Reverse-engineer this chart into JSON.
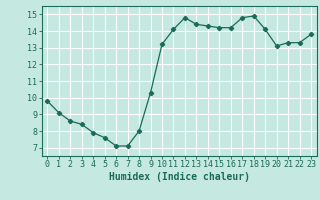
{
  "xlabel": "Humidex (Indice chaleur)",
  "ylabel": "",
  "x": [
    0,
    1,
    2,
    3,
    4,
    5,
    6,
    7,
    8,
    9,
    10,
    11,
    12,
    13,
    14,
    15,
    16,
    17,
    18,
    19,
    20,
    21,
    22,
    23
  ],
  "y": [
    9.8,
    9.1,
    8.6,
    8.4,
    7.9,
    7.6,
    7.1,
    7.1,
    8.0,
    10.3,
    13.2,
    14.1,
    14.8,
    14.4,
    14.3,
    14.2,
    14.2,
    14.8,
    14.9,
    14.1,
    13.1,
    13.3,
    13.3,
    13.8
  ],
  "line_color": "#1a6b5a",
  "marker": "D",
  "marker_size": 2.2,
  "background_color": "#c5e8e0",
  "grid_color": "#ffffff",
  "xlim": [
    -0.5,
    23.5
  ],
  "ylim": [
    6.5,
    15.5
  ],
  "yticks": [
    7,
    8,
    9,
    10,
    11,
    12,
    13,
    14,
    15
  ],
  "xticks": [
    0,
    1,
    2,
    3,
    4,
    5,
    6,
    7,
    8,
    9,
    10,
    11,
    12,
    13,
    14,
    15,
    16,
    17,
    18,
    19,
    20,
    21,
    22,
    23
  ],
  "tick_color": "#1a6b5a",
  "axis_color": "#1a6b5a",
  "xlabel_fontsize": 7,
  "tick_fontsize": 6.0,
  "linewidth": 0.9
}
